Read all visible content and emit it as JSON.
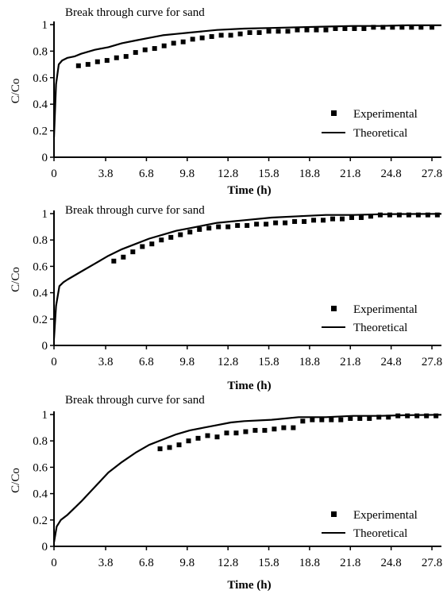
{
  "chart_data": [
    {
      "type": "scatter",
      "title": "Break through curve for sand",
      "xlabel": "Time (h)",
      "ylabel": "C/Co",
      "xlim": [
        0,
        28.5
      ],
      "ylim": [
        0,
        1
      ],
      "xticks": [
        "0",
        "3.8",
        "6.8",
        "9.8",
        "12.8",
        "15.8",
        "18.8",
        "21.8",
        "24.8",
        "27.8"
      ],
      "yticks": [
        "0",
        "0.2",
        "0.4",
        "0.6",
        "0.8",
        "1"
      ],
      "legend_position": "right",
      "grid": false,
      "series": [
        {
          "name": "Experimental",
          "style": "square-markers",
          "x": [
            1.8,
            2.5,
            3.2,
            3.9,
            4.6,
            5.3,
            6.0,
            6.7,
            7.4,
            8.1,
            8.8,
            9.5,
            10.2,
            10.9,
            11.6,
            12.3,
            13.0,
            13.7,
            14.4,
            15.1,
            15.8,
            16.5,
            17.2,
            17.9,
            18.6,
            19.3,
            20.0,
            20.7,
            21.4,
            22.1,
            22.8,
            23.5,
            24.2,
            24.9,
            25.6,
            26.3,
            27.0,
            27.8
          ],
          "y": [
            0.69,
            0.7,
            0.72,
            0.73,
            0.75,
            0.76,
            0.79,
            0.81,
            0.82,
            0.84,
            0.86,
            0.87,
            0.89,
            0.9,
            0.91,
            0.92,
            0.92,
            0.93,
            0.94,
            0.94,
            0.95,
            0.95,
            0.95,
            0.96,
            0.96,
            0.96,
            0.96,
            0.97,
            0.97,
            0.97,
            0.97,
            0.98,
            0.98,
            0.98,
            0.98,
            0.98,
            0.98,
            0.98
          ]
        },
        {
          "name": "Theoretical",
          "style": "line",
          "x": [
            0,
            0.15,
            0.35,
            0.6,
            1,
            1.5,
            2,
            3,
            4,
            5,
            6,
            7,
            8,
            9,
            10,
            12,
            14,
            16,
            18,
            20,
            22,
            24,
            26,
            28.5
          ],
          "y": [
            0.15,
            0.55,
            0.7,
            0.73,
            0.75,
            0.76,
            0.78,
            0.81,
            0.83,
            0.86,
            0.88,
            0.9,
            0.92,
            0.93,
            0.94,
            0.96,
            0.97,
            0.975,
            0.98,
            0.985,
            0.99,
            0.99,
            0.995,
            0.995
          ]
        }
      ]
    },
    {
      "type": "scatter",
      "title": "Break through curve for sand",
      "xlabel": "Time (h)",
      "ylabel": "C/Co",
      "xlim": [
        0,
        28.5
      ],
      "ylim": [
        0,
        1
      ],
      "xticks": [
        "0",
        "3.8",
        "6.8",
        "9.8",
        "12.8",
        "15.8",
        "18.8",
        "21.8",
        "24.8",
        "27.8"
      ],
      "yticks": [
        "0",
        "0.2",
        "0.4",
        "0.6",
        "0.8",
        "1"
      ],
      "legend_position": "bottom-right",
      "grid": false,
      "series": [
        {
          "name": "Experimental",
          "style": "square-markers",
          "x": [
            4.4,
            5.1,
            5.8,
            6.5,
            7.2,
            7.9,
            8.6,
            9.3,
            10.0,
            10.7,
            11.4,
            12.1,
            12.8,
            13.5,
            14.2,
            14.9,
            15.6,
            16.3,
            17.0,
            17.7,
            18.4,
            19.1,
            19.8,
            20.5,
            21.2,
            21.9,
            22.6,
            23.3,
            24.0,
            24.7,
            25.4,
            26.1,
            26.8,
            27.5,
            28.2
          ],
          "y": [
            0.64,
            0.67,
            0.71,
            0.75,
            0.77,
            0.8,
            0.82,
            0.84,
            0.86,
            0.88,
            0.89,
            0.9,
            0.9,
            0.91,
            0.91,
            0.92,
            0.92,
            0.93,
            0.93,
            0.94,
            0.94,
            0.95,
            0.95,
            0.96,
            0.96,
            0.97,
            0.97,
            0.98,
            0.99,
            0.99,
            0.99,
            0.99,
            0.99,
            0.99,
            0.99
          ]
        },
        {
          "name": "Theoretical",
          "style": "line",
          "x": [
            0,
            0.15,
            0.4,
            0.7,
            1,
            2,
            3,
            4,
            5,
            6,
            7,
            8,
            9,
            10,
            12,
            14,
            16,
            18,
            20,
            22,
            24,
            26,
            28.5
          ],
          "y": [
            0.05,
            0.3,
            0.45,
            0.48,
            0.5,
            0.56,
            0.62,
            0.68,
            0.73,
            0.77,
            0.81,
            0.84,
            0.87,
            0.89,
            0.93,
            0.95,
            0.97,
            0.98,
            0.99,
            0.99,
            0.995,
            0.997,
            0.998
          ]
        }
      ]
    },
    {
      "type": "scatter",
      "title": "Break through curve for sand",
      "xlabel": "Time (h)",
      "ylabel": "C/Co",
      "xlim": [
        0,
        28.5
      ],
      "ylim": [
        0,
        1
      ],
      "xticks": [
        "0",
        "3.8",
        "6.8",
        "9.8",
        "12.8",
        "15.8",
        "18.8",
        "21.8",
        "24.8",
        "27.8"
      ],
      "yticks": [
        "0",
        "0.2",
        "0.4",
        "0.6",
        "0.8",
        "1"
      ],
      "legend_position": "bottom-right",
      "grid": false,
      "series": [
        {
          "name": "Experimental",
          "style": "square-markers",
          "x": [
            7.8,
            8.5,
            9.2,
            9.9,
            10.6,
            11.3,
            12.0,
            12.7,
            13.4,
            14.1,
            14.8,
            15.5,
            16.2,
            16.9,
            17.6,
            18.3,
            19.0,
            19.7,
            20.4,
            21.1,
            21.8,
            22.5,
            23.2,
            23.9,
            24.6,
            25.3,
            26.0,
            26.7,
            27.4,
            28.1
          ],
          "y": [
            0.74,
            0.75,
            0.77,
            0.8,
            0.82,
            0.84,
            0.83,
            0.86,
            0.86,
            0.87,
            0.88,
            0.88,
            0.89,
            0.9,
            0.9,
            0.95,
            0.96,
            0.96,
            0.96,
            0.96,
            0.97,
            0.97,
            0.97,
            0.98,
            0.98,
            0.99,
            0.99,
            0.99,
            0.99,
            0.99
          ]
        },
        {
          "name": "Theoretical",
          "style": "line",
          "x": [
            0,
            0.2,
            0.5,
            1,
            2,
            3,
            4,
            5,
            6,
            7,
            8,
            9,
            10,
            11,
            12,
            13,
            14,
            16,
            18,
            20,
            22,
            24,
            26,
            28.5
          ],
          "y": [
            0.03,
            0.15,
            0.2,
            0.24,
            0.34,
            0.45,
            0.56,
            0.64,
            0.71,
            0.77,
            0.81,
            0.85,
            0.88,
            0.9,
            0.92,
            0.94,
            0.95,
            0.96,
            0.98,
            0.98,
            0.99,
            0.99,
            0.995,
            0.998
          ]
        }
      ]
    }
  ]
}
